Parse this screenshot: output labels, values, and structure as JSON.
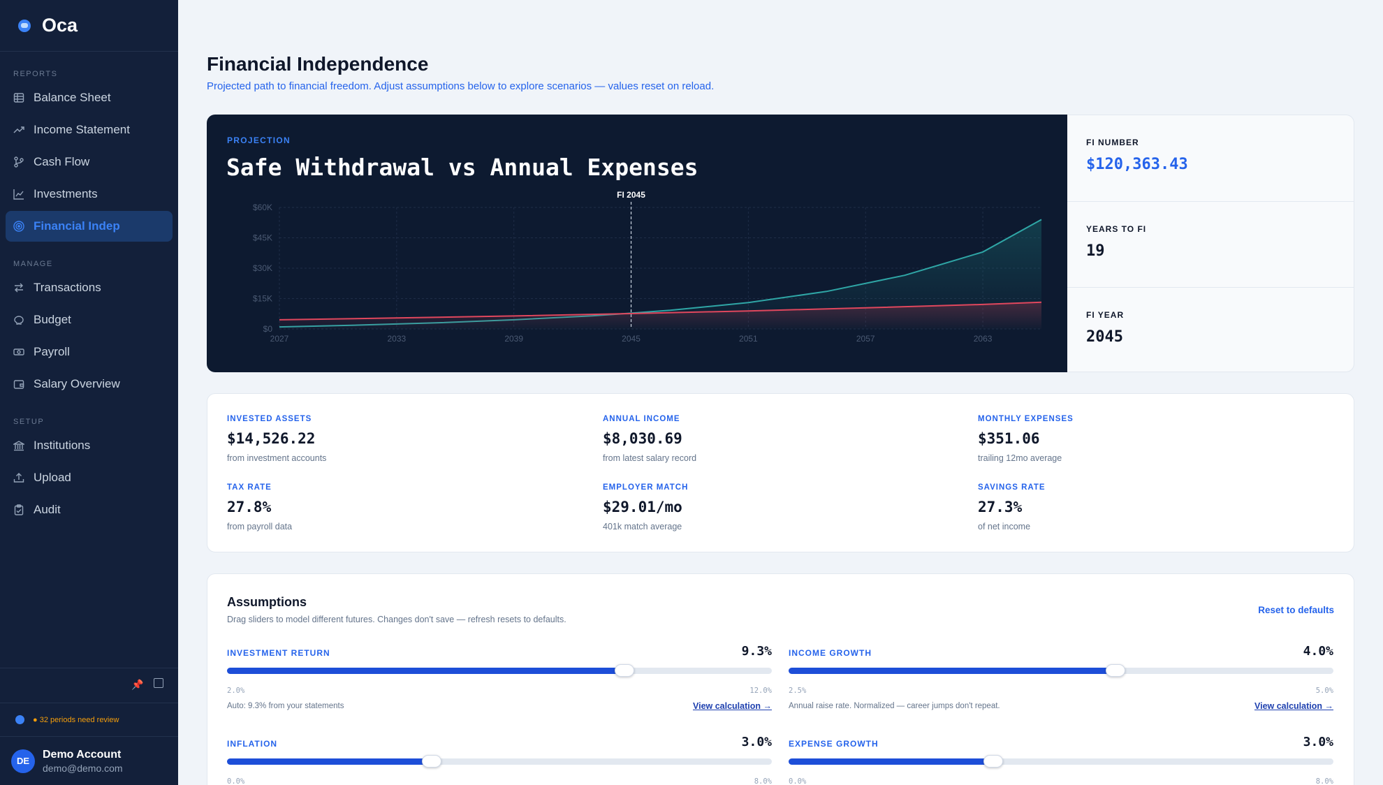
{
  "sidebar": {
    "brand": "Oca",
    "sections": {
      "reports": "REPORTS",
      "manage": "MANAGE",
      "setup": "SETUP"
    },
    "items": [
      {
        "label": "Balance Sheet",
        "icon": "table-icon"
      },
      {
        "label": "Income Statement",
        "icon": "trend-up-icon"
      },
      {
        "label": "Cash Flow",
        "icon": "branch-icon"
      },
      {
        "label": "Investments",
        "icon": "line-chart-icon"
      },
      {
        "label": "Financial Indep",
        "icon": "target-icon",
        "active": true
      },
      {
        "label": "Transactions",
        "icon": "arrows-swap-icon"
      },
      {
        "label": "Budget",
        "icon": "piggy-bank-icon"
      },
      {
        "label": "Payroll",
        "icon": "cash-icon"
      },
      {
        "label": "Salary Overview",
        "icon": "wallet-icon"
      },
      {
        "label": "Institutions",
        "icon": "bank-icon"
      },
      {
        "label": "Upload",
        "icon": "upload-icon"
      },
      {
        "label": "Audit",
        "icon": "clipboard-check-icon"
      }
    ],
    "review_alert": "● 32 periods need review",
    "user": {
      "initials": "DE",
      "name": "Demo Account",
      "email": "demo@demo.com"
    }
  },
  "header": {
    "title": "Financial Independence",
    "subtitle": "Projected path to financial freedom. Adjust assumptions below to explore scenarios — values reset on reload."
  },
  "projection": {
    "label": "PROJECTION",
    "title": "Safe Withdrawal vs Annual Expenses"
  },
  "chart_data": {
    "type": "line",
    "title": "Safe Withdrawal vs Annual Expenses",
    "x_ticks": [
      "2027",
      "2033",
      "2039",
      "2045",
      "2051",
      "2057",
      "2063"
    ],
    "y_ticks": [
      "$0",
      "$15K",
      "$30K",
      "$45K",
      "$60K"
    ],
    "xlim": [
      2027,
      2066
    ],
    "ylim": [
      0,
      60000
    ],
    "marker": {
      "x": 2045,
      "label": "FI 2045"
    },
    "series": [
      {
        "values_x": [
          2027,
          2031,
          2035,
          2039,
          2043,
          2045,
          2047,
          2051,
          2055,
          2059,
          2063,
          2066
        ],
        "values": [
          1000,
          1900,
          3000,
          4500,
          6500,
          7800,
          9200,
          13000,
          18500,
          26500,
          38000,
          54000
        ],
        "color": "#2fa6a6"
      },
      {
        "values_x": [
          2027,
          2033,
          2039,
          2045,
          2051,
          2057,
          2063,
          2066
        ],
        "values": [
          4500,
          5400,
          6400,
          7600,
          8900,
          10400,
          12100,
          13200
        ],
        "color": "#e0475d"
      }
    ]
  },
  "kpis": [
    {
      "label": "FI NUMBER",
      "value": "$120,363.43"
    },
    {
      "label": "YEARS TO FI",
      "value": "19"
    },
    {
      "label": "FI YEAR",
      "value": "2045"
    }
  ],
  "stats": [
    {
      "label": "INVESTED ASSETS",
      "value": "$14,526.22",
      "note": "from investment accounts"
    },
    {
      "label": "ANNUAL INCOME",
      "value": "$8,030.69",
      "note": "from latest salary record"
    },
    {
      "label": "MONTHLY EXPENSES",
      "value": "$351.06",
      "note": "trailing 12mo average"
    },
    {
      "label": "TAX RATE",
      "value": "27.8%",
      "note": "from payroll data"
    },
    {
      "label": "EMPLOYER MATCH",
      "value": "$29.01/mo",
      "note": "401k match average"
    },
    {
      "label": "SAVINGS RATE",
      "value": "27.3%",
      "note": "of net income"
    }
  ],
  "assumptions": {
    "title": "Assumptions",
    "subtitle": "Drag sliders to model different futures. Changes don't save — refresh resets to defaults.",
    "reset_label": "Reset to defaults",
    "sliders": [
      {
        "label": "INVESTMENT RETURN",
        "display": "9.3%",
        "value": 9.3,
        "min": 2,
        "max": 12,
        "min_label": "2.0%",
        "max_label": "12.0%",
        "note": "Auto: 9.3% from your statements",
        "link": "View calculation →"
      },
      {
        "label": "INCOME GROWTH",
        "display": "4.0%",
        "value": 4.0,
        "min": 2.5,
        "max": 5,
        "min_label": "2.5%",
        "max_label": "5.0%",
        "note": "Annual raise rate. Normalized — career jumps don't repeat.",
        "link": "View calculation →"
      },
      {
        "label": "INFLATION",
        "display": "3.0%",
        "value": 3.0,
        "min": 0,
        "max": 8,
        "min_label": "0.0%",
        "max_label": "8.0%"
      },
      {
        "label": "EXPENSE GROWTH",
        "display": "3.0%",
        "value": 3.0,
        "min": 0,
        "max": 8,
        "min_label": "0.0%",
        "max_label": "8.0%"
      }
    ]
  }
}
